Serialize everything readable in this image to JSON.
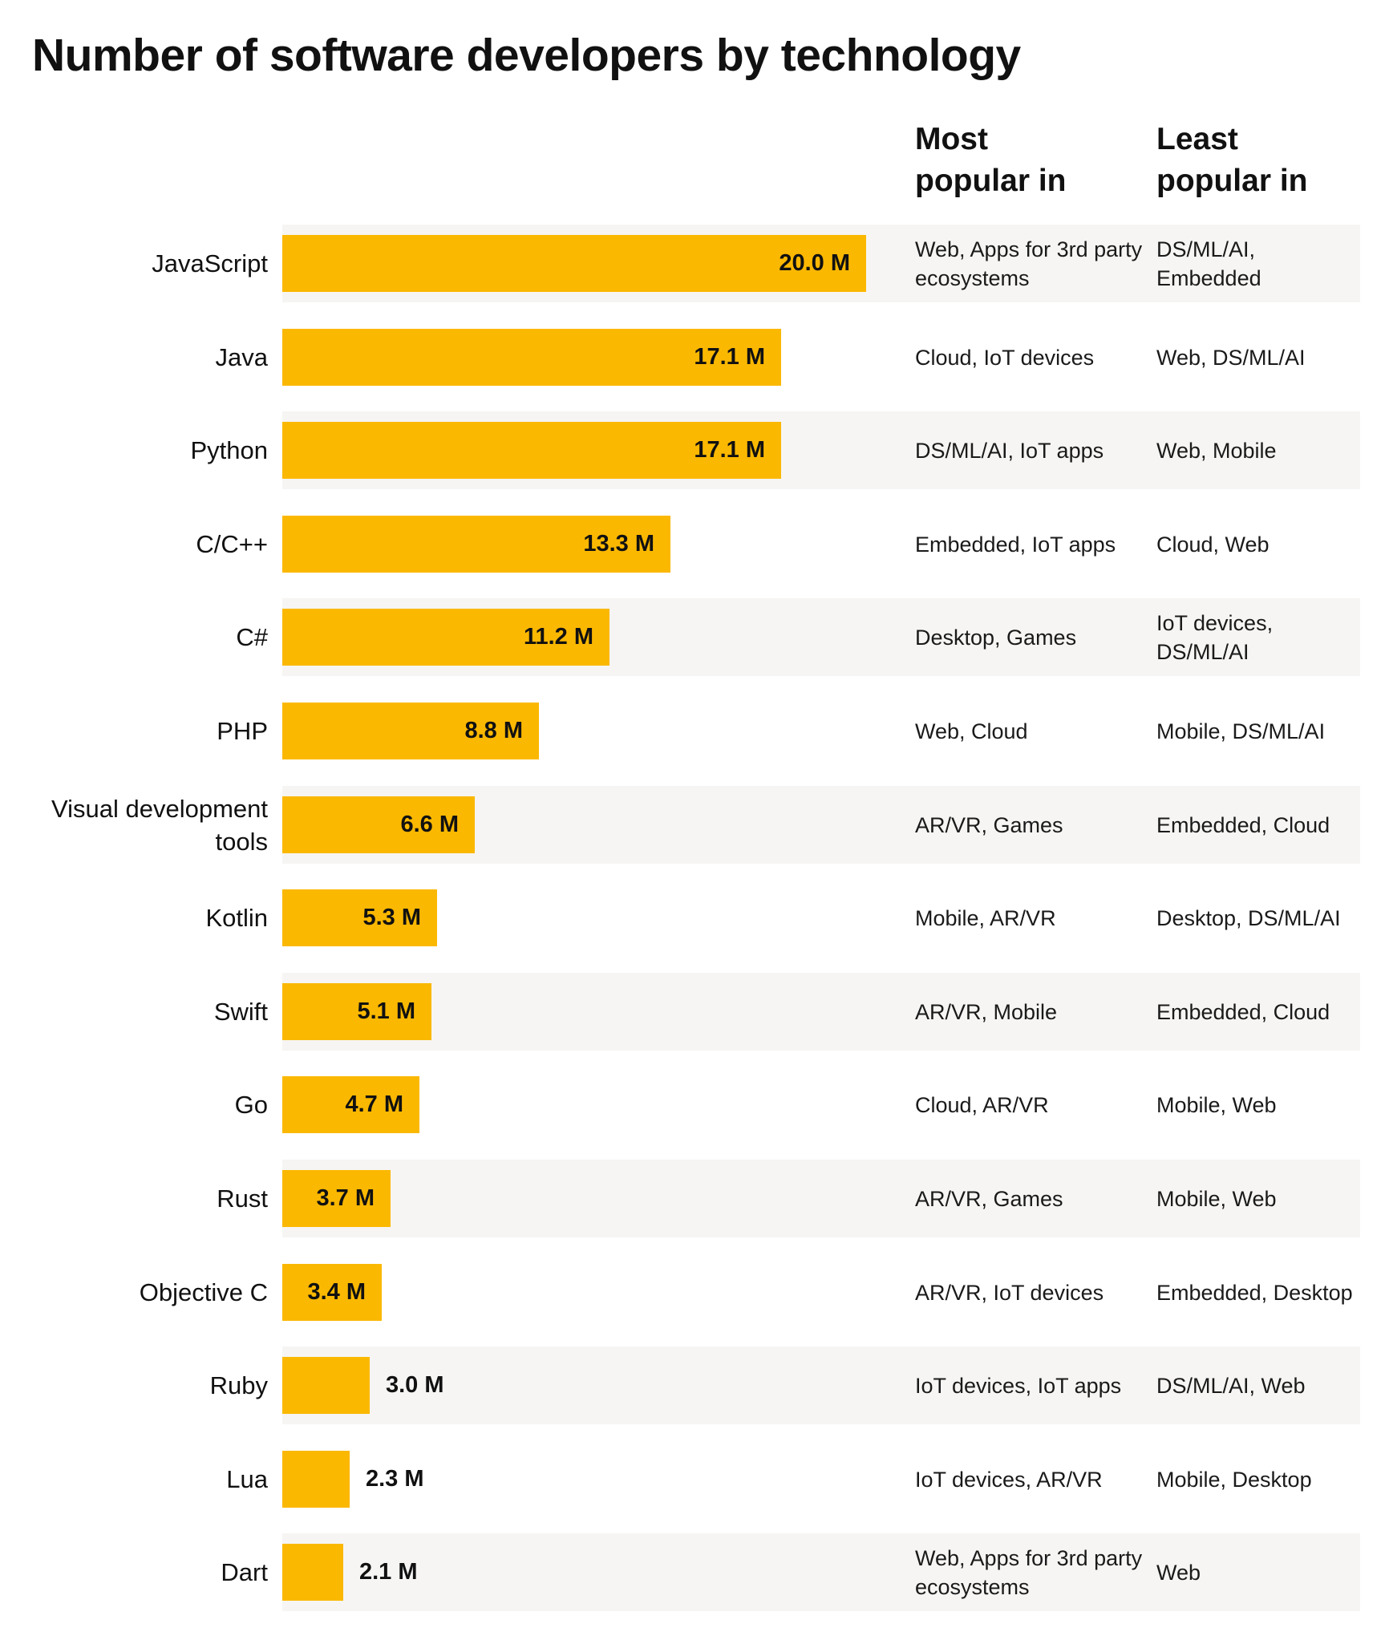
{
  "chart_data": {
    "type": "bar",
    "orientation": "horizontal",
    "title": "Number of software developers by technology",
    "columns": [
      "Most popular in",
      "Least popular in"
    ],
    "xlim": [
      0,
      20.0
    ],
    "bar_color": "#fbb800",
    "categories": [
      "JavaScript",
      "Java",
      "Python",
      "C/C++",
      "C#",
      "PHP",
      "Visual development tools",
      "Kotlin",
      "Swift",
      "Go",
      "Rust",
      "Objective C",
      "Ruby",
      "Lua",
      "Dart"
    ],
    "values": [
      20.0,
      17.1,
      17.1,
      13.3,
      11.2,
      8.8,
      6.6,
      5.3,
      5.1,
      4.7,
      3.7,
      3.4,
      3.0,
      2.3,
      2.1
    ],
    "value_labels": [
      "20.0 M",
      "17.1 M",
      "17.1 M",
      "13.3 M",
      "11.2 M",
      "8.8 M",
      "6.6 M",
      "5.3 M",
      "5.1 M",
      "4.7 M",
      "3.7 M",
      "3.4 M",
      "3.0 M",
      "2.3 M",
      "2.1 M"
    ],
    "most_popular_in": [
      "Web, Apps for 3rd party ecosystems",
      "Cloud, IoT devices",
      "DS/ML/AI, IoT apps",
      "Embedded, IoT apps",
      "Desktop, Games",
      "Web, Cloud",
      "AR/VR, Games",
      "Mobile, AR/VR",
      "AR/VR, Mobile",
      "Cloud, AR/VR",
      "AR/VR, Games",
      "AR/VR, IoT devices",
      "IoT devices, IoT apps",
      "IoT devices, AR/VR",
      "Web, Apps for 3rd party ecosystems"
    ],
    "least_popular_in": [
      "DS/ML/AI, Embedded",
      "Web, DS/ML/AI",
      "Web, Mobile",
      "Cloud, Web",
      "IoT devices, DS/ML/AI",
      "Mobile, DS/ML/AI",
      "Embedded, Cloud",
      "Desktop, DS/ML/AI",
      "Embedded, Cloud",
      "Mobile, Web",
      "Mobile, Web",
      "Embedded, Desktop",
      "DS/ML/AI, Web",
      "Mobile, Desktop",
      "Web"
    ]
  },
  "header": {
    "most_line1": "Most",
    "most_line2": "popular in",
    "least_line1": "Least",
    "least_line2": "popular in"
  }
}
